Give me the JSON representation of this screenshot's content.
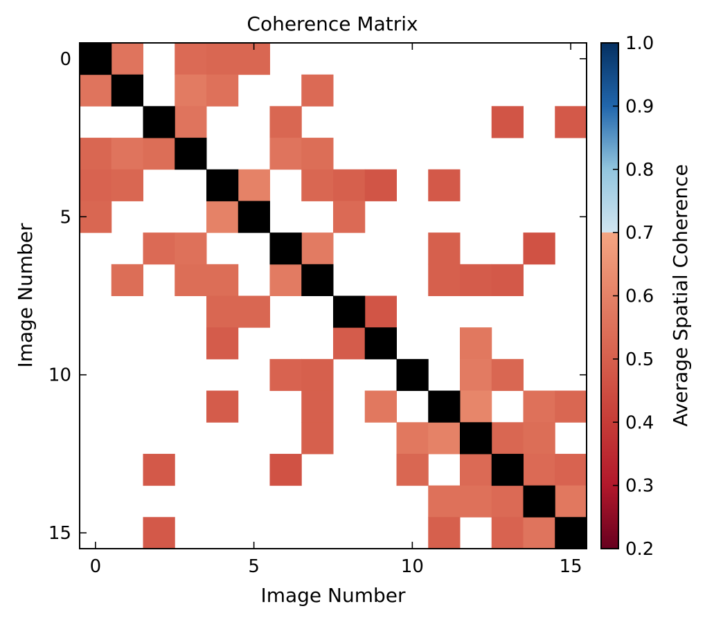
{
  "chart_data": {
    "type": "heatmap",
    "title": "Coherence Matrix",
    "xlabel": "Image Number",
    "ylabel": "Image Number",
    "x_ticks": [
      0,
      5,
      10,
      15
    ],
    "y_ticks": [
      0,
      5,
      10,
      15
    ],
    "x_tick_labels": [
      "0",
      "5",
      "10",
      "15"
    ],
    "y_tick_labels": [
      "0",
      "5",
      "10",
      "15"
    ],
    "n_images": 16,
    "diagonal_color": "#000000",
    "masked_color": "#ffffff",
    "colorbar": {
      "label": "Average Spatial Coherence",
      "range": [
        0.2,
        1.0
      ],
      "ticks": [
        0.2,
        0.3,
        0.4,
        0.5,
        0.6,
        0.7,
        0.8,
        0.9,
        1.0
      ],
      "tick_labels": [
        "0.2",
        "0.3",
        "0.4",
        "0.5",
        "0.6",
        "0.7",
        "0.8",
        "0.9",
        "1.0"
      ],
      "colormap": "RdBu",
      "stops": [
        {
          "v": 0.2,
          "color": "#67001f"
        },
        {
          "v": 0.3,
          "color": "#b2182b"
        },
        {
          "v": 0.4,
          "color": "#c63c37"
        },
        {
          "v": 0.5,
          "color": "#d6604d"
        },
        {
          "v": 0.6,
          "color": "#e58267"
        },
        {
          "v": 0.7,
          "color": "#f4a582"
        },
        {
          "v": 0.7,
          "color": "#d1e5f0"
        },
        {
          "v": 0.8,
          "color": "#92c5de"
        },
        {
          "v": 0.9,
          "color": "#2166ac"
        },
        {
          "v": 1.0,
          "color": "#053061"
        }
      ]
    },
    "cells": [
      {
        "i": 0,
        "j": 1,
        "v": 0.56
      },
      {
        "i": 0,
        "j": 3,
        "v": 0.53
      },
      {
        "i": 0,
        "j": 4,
        "v": 0.52
      },
      {
        "i": 0,
        "j": 5,
        "v": 0.52
      },
      {
        "i": 1,
        "j": 0,
        "v": 0.56
      },
      {
        "i": 1,
        "j": 3,
        "v": 0.58
      },
      {
        "i": 1,
        "j": 4,
        "v": 0.55
      },
      {
        "i": 1,
        "j": 7,
        "v": 0.53
      },
      {
        "i": 2,
        "j": 3,
        "v": 0.56
      },
      {
        "i": 2,
        "j": 6,
        "v": 0.52
      },
      {
        "i": 2,
        "j": 13,
        "v": 0.47
      },
      {
        "i": 2,
        "j": 15,
        "v": 0.48
      },
      {
        "i": 3,
        "j": 0,
        "v": 0.52
      },
      {
        "i": 3,
        "j": 1,
        "v": 0.56
      },
      {
        "i": 3,
        "j": 2,
        "v": 0.54
      },
      {
        "i": 3,
        "j": 6,
        "v": 0.56
      },
      {
        "i": 3,
        "j": 7,
        "v": 0.54
      },
      {
        "i": 4,
        "j": 0,
        "v": 0.51
      },
      {
        "i": 4,
        "j": 1,
        "v": 0.52
      },
      {
        "i": 4,
        "j": 5,
        "v": 0.6
      },
      {
        "i": 4,
        "j": 7,
        "v": 0.52
      },
      {
        "i": 4,
        "j": 8,
        "v": 0.5
      },
      {
        "i": 4,
        "j": 9,
        "v": 0.47
      },
      {
        "i": 4,
        "j": 11,
        "v": 0.48
      },
      {
        "i": 5,
        "j": 0,
        "v": 0.52
      },
      {
        "i": 5,
        "j": 4,
        "v": 0.6
      },
      {
        "i": 5,
        "j": 8,
        "v": 0.53
      },
      {
        "i": 6,
        "j": 2,
        "v": 0.53
      },
      {
        "i": 6,
        "j": 3,
        "v": 0.55
      },
      {
        "i": 6,
        "j": 7,
        "v": 0.58
      },
      {
        "i": 6,
        "j": 11,
        "v": 0.5
      },
      {
        "i": 6,
        "j": 14,
        "v": 0.46
      },
      {
        "i": 7,
        "j": 1,
        "v": 0.54
      },
      {
        "i": 7,
        "j": 3,
        "v": 0.54
      },
      {
        "i": 7,
        "j": 4,
        "v": 0.54
      },
      {
        "i": 7,
        "j": 6,
        "v": 0.58
      },
      {
        "i": 7,
        "j": 11,
        "v": 0.5
      },
      {
        "i": 7,
        "j": 12,
        "v": 0.49
      },
      {
        "i": 7,
        "j": 13,
        "v": 0.48
      },
      {
        "i": 8,
        "j": 4,
        "v": 0.52
      },
      {
        "i": 8,
        "j": 5,
        "v": 0.52
      },
      {
        "i": 8,
        "j": 9,
        "v": 0.47
      },
      {
        "i": 9,
        "j": 4,
        "v": 0.49
      },
      {
        "i": 9,
        "j": 8,
        "v": 0.49
      },
      {
        "i": 9,
        "j": 12,
        "v": 0.57
      },
      {
        "i": 10,
        "j": 6,
        "v": 0.51
      },
      {
        "i": 10,
        "j": 7,
        "v": 0.5
      },
      {
        "i": 10,
        "j": 12,
        "v": 0.58
      },
      {
        "i": 10,
        "j": 13,
        "v": 0.52
      },
      {
        "i": 11,
        "j": 4,
        "v": 0.49
      },
      {
        "i": 11,
        "j": 7,
        "v": 0.5
      },
      {
        "i": 11,
        "j": 9,
        "v": 0.57
      },
      {
        "i": 11,
        "j": 12,
        "v": 0.61
      },
      {
        "i": 11,
        "j": 14,
        "v": 0.55
      },
      {
        "i": 11,
        "j": 15,
        "v": 0.52
      },
      {
        "i": 12,
        "j": 7,
        "v": 0.5
      },
      {
        "i": 12,
        "j": 10,
        "v": 0.57
      },
      {
        "i": 12,
        "j": 11,
        "v": 0.6
      },
      {
        "i": 12,
        "j": 13,
        "v": 0.52
      },
      {
        "i": 12,
        "j": 14,
        "v": 0.54
      },
      {
        "i": 13,
        "j": 2,
        "v": 0.48
      },
      {
        "i": 13,
        "j": 6,
        "v": 0.46
      },
      {
        "i": 13,
        "j": 10,
        "v": 0.52
      },
      {
        "i": 13,
        "j": 12,
        "v": 0.53
      },
      {
        "i": 13,
        "j": 14,
        "v": 0.53
      },
      {
        "i": 13,
        "j": 15,
        "v": 0.51
      },
      {
        "i": 14,
        "j": 11,
        "v": 0.55
      },
      {
        "i": 14,
        "j": 12,
        "v": 0.55
      },
      {
        "i": 14,
        "j": 13,
        "v": 0.53
      },
      {
        "i": 14,
        "j": 15,
        "v": 0.57
      },
      {
        "i": 15,
        "j": 2,
        "v": 0.48
      },
      {
        "i": 15,
        "j": 11,
        "v": 0.5
      },
      {
        "i": 15,
        "j": 13,
        "v": 0.51
      },
      {
        "i": 15,
        "j": 14,
        "v": 0.56
      }
    ]
  }
}
